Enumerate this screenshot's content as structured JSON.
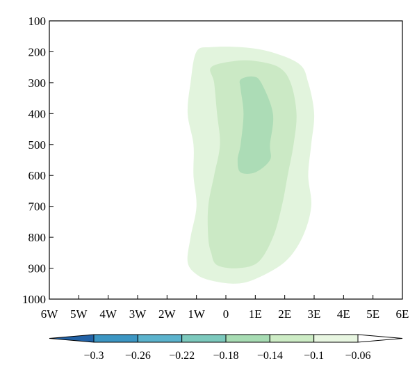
{
  "chart_data": {
    "type": "heatmap",
    "title": "",
    "xlabel": "",
    "ylabel": "",
    "x_ticks": [
      "6W",
      "5W",
      "4W",
      "3W",
      "2W",
      "1W",
      "0",
      "1E",
      "2E",
      "3E",
      "4E",
      "5E",
      "6E"
    ],
    "x_range": [
      -6,
      6
    ],
    "y_ticks": [
      "100",
      "200",
      "300",
      "400",
      "500",
      "600",
      "700",
      "800",
      "900",
      "1000"
    ],
    "y_range": [
      100,
      1000
    ],
    "y_inverted": true,
    "grid": false,
    "contour_fill_colors": {
      "-0.06": "#e2f4dd",
      "-0.1": "#cbe9c5",
      "-0.14": "#acdcb6"
    },
    "contours": [
      {
        "level": -0.06,
        "points": [
          [
            -1.0,
            200
          ],
          [
            -0.5,
            185
          ],
          [
            0.5,
            185
          ],
          [
            1.5,
            200
          ],
          [
            2.5,
            240
          ],
          [
            2.8,
            300
          ],
          [
            3.0,
            400
          ],
          [
            2.9,
            500
          ],
          [
            2.8,
            600
          ],
          [
            2.9,
            700
          ],
          [
            2.6,
            800
          ],
          [
            2.0,
            880
          ],
          [
            1.0,
            935
          ],
          [
            0.3,
            950
          ],
          [
            -0.5,
            940
          ],
          [
            -1.0,
            920
          ],
          [
            -1.3,
            880
          ],
          [
            -1.2,
            800
          ],
          [
            -1.0,
            700
          ],
          [
            -1.1,
            600
          ],
          [
            -1.1,
            500
          ],
          [
            -1.3,
            400
          ],
          [
            -1.2,
            300
          ]
        ]
      },
      {
        "level": -0.1,
        "points": [
          [
            -0.5,
            250
          ],
          [
            0.3,
            230
          ],
          [
            1.0,
            230
          ],
          [
            1.8,
            250
          ],
          [
            2.2,
            300
          ],
          [
            2.4,
            400
          ],
          [
            2.3,
            500
          ],
          [
            2.1,
            600
          ],
          [
            1.9,
            700
          ],
          [
            1.6,
            800
          ],
          [
            1.1,
            880
          ],
          [
            0.4,
            900
          ],
          [
            -0.3,
            890
          ],
          [
            -0.5,
            850
          ],
          [
            -0.6,
            800
          ],
          [
            -0.6,
            700
          ],
          [
            -0.4,
            600
          ],
          [
            -0.2,
            500
          ],
          [
            -0.3,
            400
          ],
          [
            -0.4,
            300
          ]
        ]
      },
      {
        "level": -0.14,
        "points": [
          [
            0.5,
            290
          ],
          [
            0.9,
            280
          ],
          [
            1.2,
            300
          ],
          [
            1.6,
            400
          ],
          [
            1.5,
            500
          ],
          [
            1.5,
            550
          ],
          [
            1.0,
            590
          ],
          [
            0.5,
            590
          ],
          [
            0.4,
            550
          ],
          [
            0.5,
            500
          ],
          [
            0.6,
            400
          ],
          [
            0.5,
            320
          ]
        ]
      }
    ],
    "colorbar": {
      "labels": [
        "−0.3",
        "−0.26",
        "−0.22",
        "−0.18",
        "−0.14",
        "−0.1",
        "−0.06"
      ],
      "colors": [
        "#2262a6",
        "#3c96c3",
        "#5bb3cd",
        "#7cc9bd",
        "#a7dcb3",
        "#cdecc5",
        "#e8f6e1",
        "#ffffff"
      ]
    }
  }
}
